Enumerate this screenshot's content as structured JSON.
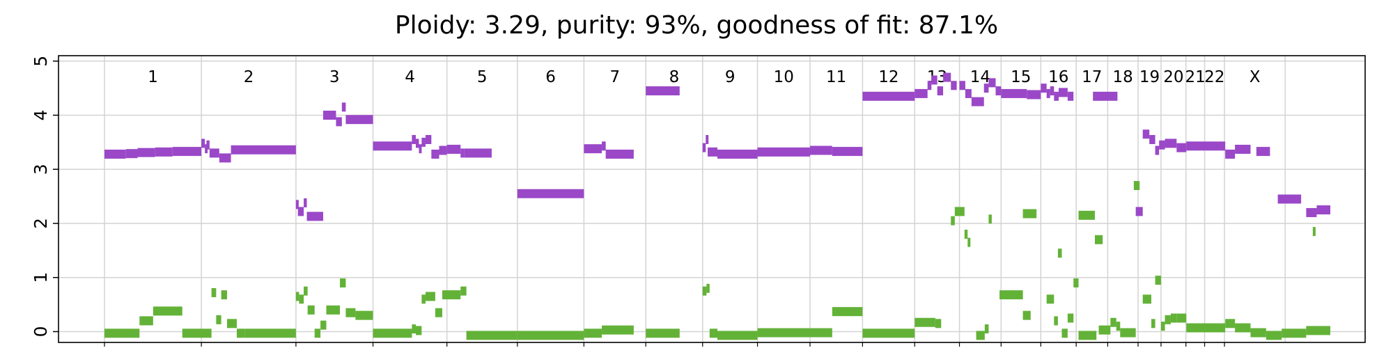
{
  "chart_data": {
    "type": "scatter",
    "title": "Ploidy: 3.29, purity: 93%, goodness of fit: 87.1%",
    "ylim": [
      -0.2,
      5.1
    ],
    "xlim": [
      0,
      3150
    ],
    "yticks": [
      0,
      1,
      2,
      3,
      4,
      5
    ],
    "grid": true,
    "colors": {
      "total": "#9a48c8",
      "minor": "#63b238"
    },
    "chromosomes": [
      {
        "name": "1",
        "start": 0,
        "end": 249
      },
      {
        "name": "2",
        "start": 249,
        "end": 492
      },
      {
        "name": "3",
        "start": 492,
        "end": 690
      },
      {
        "name": "4",
        "start": 690,
        "end": 880
      },
      {
        "name": "5",
        "start": 880,
        "end": 1061
      },
      {
        "name": "6",
        "start": 1061,
        "end": 1232
      },
      {
        "name": "7",
        "start": 1232,
        "end": 1391
      },
      {
        "name": "8",
        "start": 1391,
        "end": 1537
      },
      {
        "name": "9",
        "start": 1537,
        "end": 1678
      },
      {
        "name": "10",
        "start": 1678,
        "end": 1813
      },
      {
        "name": "11",
        "start": 1813,
        "end": 1948
      },
      {
        "name": "12",
        "start": 1948,
        "end": 2082
      },
      {
        "name": "13",
        "start": 2082,
        "end": 2197
      },
      {
        "name": "14",
        "start": 2197,
        "end": 2304
      },
      {
        "name": "15",
        "start": 2304,
        "end": 2406
      },
      {
        "name": "16",
        "start": 2406,
        "end": 2497
      },
      {
        "name": "17",
        "start": 2497,
        "end": 2578
      },
      {
        "name": "18",
        "start": 2578,
        "end": 2656
      },
      {
        "name": "19",
        "start": 2656,
        "end": 2715
      },
      {
        "name": "20",
        "start": 2715,
        "end": 2779
      },
      {
        "name": "21",
        "start": 2779,
        "end": 2827
      },
      {
        "name": "22",
        "start": 2827,
        "end": 2878
      },
      {
        "name": "X",
        "start": 2878,
        "end": 3034
      }
    ],
    "series": [
      {
        "key": "total",
        "segments": [
          [
            0,
            55,
            3.28
          ],
          [
            55,
            85,
            3.29
          ],
          [
            85,
            130,
            3.31
          ],
          [
            130,
            175,
            3.32
          ],
          [
            175,
            249,
            3.33
          ],
          [
            249,
            258,
            3.48
          ],
          [
            258,
            262,
            3.38
          ],
          [
            262,
            270,
            3.45
          ],
          [
            270,
            295,
            3.3
          ],
          [
            295,
            325,
            3.21
          ],
          [
            325,
            492,
            3.36
          ],
          [
            492,
            497,
            2.35
          ],
          [
            497,
            512,
            2.22
          ],
          [
            512,
            520,
            2.38
          ],
          [
            520,
            562,
            2.13
          ],
          [
            562,
            595,
            4.0
          ],
          [
            595,
            610,
            3.88
          ],
          [
            610,
            620,
            4.15
          ],
          [
            620,
            630,
            3.92
          ],
          [
            630,
            690,
            3.92
          ],
          [
            690,
            790,
            3.43
          ],
          [
            790,
            800,
            3.55
          ],
          [
            800,
            808,
            3.48
          ],
          [
            808,
            815,
            3.38
          ],
          [
            815,
            825,
            3.5
          ],
          [
            825,
            840,
            3.55
          ],
          [
            840,
            860,
            3.28
          ],
          [
            860,
            880,
            3.35
          ],
          [
            880,
            915,
            3.37
          ],
          [
            915,
            925,
            3.3
          ],
          [
            925,
            995,
            3.3
          ],
          [
            1061,
            1232,
            2.55
          ],
          [
            1232,
            1278,
            3.38
          ],
          [
            1278,
            1288,
            3.43
          ],
          [
            1288,
            1360,
            3.28
          ],
          [
            1391,
            1478,
            4.45
          ],
          [
            1537,
            1545,
            3.4
          ],
          [
            1545,
            1550,
            3.55
          ],
          [
            1550,
            1575,
            3.32
          ],
          [
            1575,
            1678,
            3.28
          ],
          [
            1678,
            1813,
            3.32
          ],
          [
            1813,
            1870,
            3.35
          ],
          [
            1870,
            1948,
            3.33
          ],
          [
            1948,
            2082,
            4.35
          ],
          [
            2082,
            2115,
            4.4
          ],
          [
            2115,
            2125,
            4.55
          ],
          [
            2125,
            2140,
            4.65
          ],
          [
            2140,
            2155,
            4.45
          ],
          [
            2155,
            2175,
            4.7
          ],
          [
            2175,
            2190,
            4.55
          ],
          [
            2197,
            2212,
            4.55
          ],
          [
            2212,
            2228,
            4.4
          ],
          [
            2228,
            2260,
            4.25
          ],
          [
            2260,
            2272,
            4.5
          ],
          [
            2272,
            2290,
            4.6
          ],
          [
            2290,
            2304,
            4.45
          ],
          [
            2304,
            2370,
            4.4
          ],
          [
            2370,
            2406,
            4.38
          ],
          [
            2406,
            2421,
            4.5
          ],
          [
            2421,
            2430,
            4.4
          ],
          [
            2430,
            2440,
            4.45
          ],
          [
            2440,
            2452,
            4.35
          ],
          [
            2452,
            2475,
            4.42
          ],
          [
            2475,
            2490,
            4.35
          ],
          [
            2540,
            2603,
            4.35
          ],
          [
            2650,
            2668,
            2.22
          ],
          [
            2668,
            2685,
            3.65
          ],
          [
            2685,
            2700,
            3.55
          ],
          [
            2700,
            2710,
            3.35
          ],
          [
            2710,
            2725,
            3.45
          ],
          [
            2725,
            2755,
            3.48
          ],
          [
            2755,
            2780,
            3.4
          ],
          [
            2780,
            2880,
            3.43
          ],
          [
            2880,
            2905,
            3.28
          ],
          [
            2905,
            2945,
            3.37
          ],
          [
            2960,
            2995,
            3.33
          ],
          [
            3015,
            3075,
            2.45
          ],
          [
            3088,
            3115,
            2.2
          ],
          [
            3115,
            3150,
            2.25
          ]
        ]
      },
      {
        "key": "minor",
        "segments": [
          [
            0,
            90,
            -0.03
          ],
          [
            90,
            125,
            0.2
          ],
          [
            125,
            200,
            0.38
          ],
          [
            200,
            275,
            -0.03
          ],
          [
            275,
            287,
            0.72
          ],
          [
            287,
            300,
            0.22
          ],
          [
            300,
            315,
            0.68
          ],
          [
            315,
            340,
            0.15
          ],
          [
            340,
            360,
            -0.03
          ],
          [
            360,
            492,
            -0.03
          ],
          [
            492,
            500,
            0.65
          ],
          [
            500,
            512,
            0.6
          ],
          [
            512,
            522,
            0.75
          ],
          [
            522,
            540,
            0.4
          ],
          [
            540,
            555,
            -0.03
          ],
          [
            555,
            570,
            0.12
          ],
          [
            570,
            605,
            0.4
          ],
          [
            605,
            620,
            0.9
          ],
          [
            620,
            645,
            0.35
          ],
          [
            645,
            690,
            0.3
          ],
          [
            690,
            790,
            -0.03
          ],
          [
            790,
            800,
            0.05
          ],
          [
            800,
            815,
            0.02
          ],
          [
            815,
            825,
            0.6
          ],
          [
            825,
            850,
            0.65
          ],
          [
            850,
            868,
            0.35
          ],
          [
            868,
            915,
            0.68
          ],
          [
            915,
            930,
            0.75
          ],
          [
            930,
            1061,
            -0.07
          ],
          [
            1061,
            1232,
            -0.07
          ],
          [
            1232,
            1278,
            -0.03
          ],
          [
            1278,
            1360,
            0.03
          ],
          [
            1391,
            1478,
            -0.03
          ],
          [
            1537,
            1547,
            0.75
          ],
          [
            1547,
            1555,
            0.8
          ],
          [
            1555,
            1575,
            -0.03
          ],
          [
            1575,
            1678,
            -0.07
          ],
          [
            1678,
            1813,
            -0.02
          ],
          [
            1813,
            1870,
            -0.02
          ],
          [
            1870,
            1948,
            0.37
          ],
          [
            1948,
            2082,
            -0.03
          ],
          [
            2082,
            2135,
            0.17
          ],
          [
            2135,
            2150,
            0.15
          ],
          [
            2175,
            2185,
            2.05
          ],
          [
            2185,
            2210,
            2.22
          ],
          [
            2210,
            2218,
            1.8
          ],
          [
            2218,
            2225,
            1.65
          ],
          [
            2240,
            2262,
            -0.07
          ],
          [
            2262,
            2272,
            0.05
          ],
          [
            2272,
            2280,
            2.08
          ],
          [
            2300,
            2360,
            0.68
          ],
          [
            2360,
            2380,
            0.3
          ],
          [
            2360,
            2395,
            2.18
          ],
          [
            2421,
            2440,
            0.6
          ],
          [
            2440,
            2450,
            0.2
          ],
          [
            2450,
            2460,
            1.45
          ],
          [
            2460,
            2475,
            -0.03
          ],
          [
            2475,
            2490,
            0.25
          ],
          [
            2490,
            2503,
            0.9
          ],
          [
            2503,
            2549,
            -0.07
          ],
          [
            2503,
            2545,
            2.15
          ],
          [
            2545,
            2565,
            1.7
          ],
          [
            2555,
            2585,
            0.03
          ],
          [
            2585,
            2600,
            0.17
          ],
          [
            2600,
            2610,
            0.1
          ],
          [
            2610,
            2650,
            -0.02
          ],
          [
            2645,
            2660,
            2.7
          ],
          [
            2668,
            2690,
            0.6
          ],
          [
            2690,
            2700,
            0.15
          ],
          [
            2700,
            2715,
            0.95
          ],
          [
            2715,
            2725,
            0.1
          ],
          [
            2725,
            2740,
            0.22
          ],
          [
            2740,
            2755,
            0.25
          ],
          [
            2755,
            2780,
            0.25
          ],
          [
            2780,
            2880,
            0.07
          ],
          [
            2880,
            2905,
            0.15
          ],
          [
            2905,
            2945,
            0.07
          ],
          [
            2945,
            2985,
            -0.02
          ],
          [
            2985,
            3025,
            -0.07
          ],
          [
            3025,
            3088,
            -0.03
          ],
          [
            3088,
            3150,
            0.02
          ],
          [
            3105,
            3110,
            1.85
          ]
        ]
      }
    ]
  }
}
